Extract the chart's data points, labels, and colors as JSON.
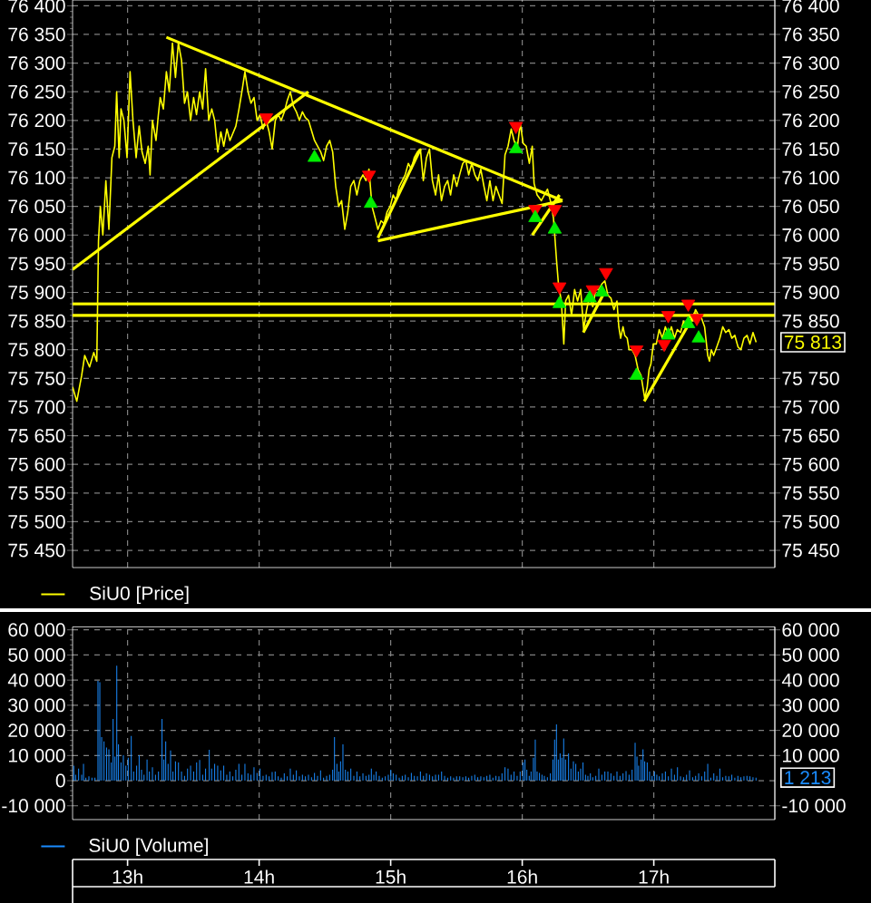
{
  "chart_data": [
    {
      "type": "line",
      "series": [
        {
          "name": "SiU0 [Price]",
          "color": "#ffff00",
          "x": [
            12.582,
            12.614,
            12.651,
            12.674,
            12.711,
            12.743,
            12.766,
            12.779,
            12.793,
            12.812,
            12.835,
            12.858,
            12.881,
            12.903,
            12.917,
            12.936,
            12.95,
            12.972,
            12.996,
            13.019,
            13.041,
            13.065,
            13.088,
            13.11,
            13.134,
            13.157,
            13.171,
            13.189,
            13.216,
            13.234,
            13.248,
            13.272,
            13.295,
            13.317,
            13.341,
            13.364,
            13.386,
            13.41,
            13.433,
            13.455,
            13.479,
            13.502,
            13.524,
            13.548,
            13.571,
            13.593,
            13.617,
            13.64,
            13.662,
            13.686,
            13.709,
            13.731,
            13.755,
            13.778,
            13.823,
            13.847,
            13.869,
            13.892,
            13.916,
            13.938,
            13.961,
            13.985,
            14.007,
            14.03,
            14.054,
            14.076,
            14.099,
            14.123,
            14.145,
            14.168,
            14.192,
            14.214,
            14.237,
            14.26,
            14.283,
            14.306,
            14.329,
            14.351,
            14.375,
            14.421,
            14.468,
            14.49,
            14.513,
            14.537,
            14.559,
            14.582,
            14.605,
            14.627,
            14.651,
            14.674,
            14.696,
            14.72,
            14.743,
            14.766,
            14.789,
            14.812,
            14.835,
            14.858,
            14.881,
            14.903,
            14.927,
            14.95,
            14.972,
            14.996,
            15.019,
            15.041,
            15.065,
            15.088,
            15.11,
            15.134,
            15.157,
            15.179,
            15.203,
            15.226,
            15.248,
            15.272,
            15.295,
            15.317,
            15.341,
            15.364,
            15.386,
            15.41,
            15.433,
            15.455,
            15.479,
            15.502,
            15.524,
            15.548,
            15.571,
            15.593,
            15.616,
            15.64,
            15.662,
            15.685,
            15.709,
            15.731,
            15.754,
            15.778,
            15.8,
            15.823,
            15.847,
            15.869,
            15.892,
            15.916,
            15.938,
            15.961,
            15.985,
            16.007,
            16.03,
            16.054,
            16.076,
            16.09,
            16.113,
            16.145,
            16.168,
            16.192,
            16.214,
            16.237,
            16.247,
            16.261,
            16.275,
            16.297,
            16.316,
            16.33,
            16.352,
            16.375,
            16.398,
            16.421,
            16.444,
            16.467,
            16.49,
            16.513,
            16.536,
            16.559,
            16.582,
            16.606,
            16.628,
            16.651,
            16.674,
            16.697,
            16.72,
            16.734,
            16.748,
            16.766,
            16.779,
            16.798,
            16.812,
            16.834,
            16.858,
            16.881,
            16.903,
            16.917,
            16.931,
            16.95,
            16.964,
            16.978,
            16.996,
            17.019,
            17.041,
            17.065,
            17.088,
            17.11,
            17.134,
            17.157,
            17.179,
            17.203,
            17.226,
            17.248,
            17.272,
            17.295,
            17.317,
            17.341,
            17.363,
            17.386,
            17.41,
            17.423,
            17.437,
            17.455,
            17.479,
            17.502,
            17.524,
            17.547,
            17.571,
            17.593,
            17.616,
            17.64,
            17.662,
            17.685,
            17.709,
            17.731,
            17.754,
            17.778
          ],
          "values": [
            75735,
            75710,
            75755,
            75790,
            75770,
            75795,
            75780,
            75990,
            76050,
            76000,
            76095,
            76010,
            76135,
            76155,
            76250,
            76135,
            76220,
            76200,
            76135,
            76285,
            76200,
            76135,
            76190,
            76145,
            76125,
            76155,
            76105,
            76200,
            76165,
            76210,
            76240,
            76220,
            76285,
            76250,
            76335,
            76275,
            76335,
            76305,
            76230,
            76250,
            76200,
            76240,
            76210,
            76250,
            76220,
            76290,
            76200,
            76220,
            76200,
            76145,
            76180,
            76155,
            76185,
            76165,
            76190,
            76220,
            76250,
            76285,
            76250,
            76230,
            76240,
            76200,
            76210,
            76185,
            76200,
            76180,
            76150,
            76200,
            76210,
            76200,
            76215,
            76235,
            76250,
            76225,
            76215,
            76200,
            76215,
            76205,
            76200,
            76165,
            76145,
            76130,
            76155,
            76165,
            76145,
            76085,
            76050,
            76060,
            76010,
            76040,
            76085,
            76095,
            76070,
            76095,
            76105,
            76095,
            76115,
            76050,
            76030,
            76010,
            76025,
            76020,
            76040,
            76050,
            76070,
            76060,
            76085,
            76095,
            76105,
            76125,
            76115,
            76135,
            76145,
            76150,
            76095,
            76135,
            76150,
            76095,
            76070,
            76105,
            76060,
            76085,
            76095,
            76070,
            76105,
            76085,
            76105,
            76125,
            76130,
            76105,
            76125,
            76105,
            76095,
            76115,
            76085,
            76060,
            76095,
            76060,
            76085,
            76070,
            76055,
            76140,
            76155,
            76185,
            76165,
            76150,
            76195,
            76160,
            76155,
            76125,
            76155,
            76090,
            76070,
            76060,
            76070,
            76080,
            76060,
            76030,
            76000,
            75955,
            75915,
            75885,
            75810,
            75885,
            75895,
            75860,
            75905,
            75885,
            75905,
            75835,
            75870,
            75895,
            75875,
            75905,
            75905,
            75915,
            75920,
            75895,
            75890,
            75870,
            75885,
            75840,
            75820,
            75840,
            75825,
            75820,
            75800,
            75800,
            75790,
            75765,
            75755,
            75735,
            75715,
            75735,
            75765,
            75775,
            75810,
            75810,
            75835,
            75820,
            75840,
            75825,
            75840,
            75820,
            75835,
            75830,
            75850,
            75840,
            75860,
            75850,
            75870,
            75860,
            75855,
            75840,
            75790,
            75780,
            75800,
            75790,
            75805,
            75820,
            75840,
            75830,
            75835,
            75820,
            75825,
            75805,
            75800,
            75820,
            75825,
            75810,
            75830,
            75813
          ]
        },
        {
          "color": "#ffff00",
          "x": [
            12.582,
            14.375
          ],
          "values": [
            75940,
            76250
          ]
        },
        {
          "color": "#ffff00",
          "x": [
            13.295,
            16.306
          ],
          "values": [
            76345,
            76060
          ]
        },
        {
          "color": "#ffff00",
          "x": [
            14.903,
            16.306
          ],
          "values": [
            75990,
            76060
          ]
        },
        {
          "color": "#ffff00",
          "x": [
            14.903,
            15.226
          ],
          "values": [
            75995,
            76150
          ]
        },
        {
          "color": "#ffff00",
          "x": [
            16.076,
            16.283
          ],
          "values": [
            76000,
            76070
          ]
        },
        {
          "color": "#ffff00",
          "x": [
            16.464,
            16.624
          ],
          "values": [
            75830,
            75900
          ]
        },
        {
          "color": "#ffff00",
          "x": [
            16.927,
            17.317
          ],
          "values": [
            75710,
            75865
          ]
        },
        {
          "type": "scatter",
          "color": "#ff0000",
          "marker": "triangle-down",
          "x": [
            14.054,
            14.835,
            15.952,
            16.099,
            16.247,
            16.283,
            16.536,
            16.637,
            16.868,
            17.079,
            17.11,
            17.262,
            17.327
          ],
          "values": [
            76205,
            76105,
            76190,
            76045,
            76045,
            75910,
            75905,
            75935,
            75800,
            75810,
            75860,
            75880,
            75855
          ]
        },
        {
          "type": "scatter",
          "color": "#00ee00",
          "marker": "triangle",
          "x": [
            14.421,
            14.849,
            15.952,
            16.099,
            16.247,
            16.283,
            16.513,
            16.605,
            16.868,
            17.11,
            17.262,
            17.341
          ],
          "values": [
            76135,
            76055,
            76150,
            76030,
            76010,
            75880,
            75890,
            75900,
            75755,
            75825,
            75845,
            75820
          ]
        }
      ],
      "xlim": [
        12.582,
        17.92
      ],
      "xticks": [
        {
          "value": 13,
          "label": null
        },
        {
          "value": 14,
          "label": null
        },
        {
          "value": 15,
          "label": null
        },
        {
          "value": 16,
          "label": null
        },
        {
          "value": 17,
          "label": null
        }
      ],
      "ylim": [
        75420,
        76410
      ],
      "yticks": [
        {
          "value": 75450,
          "label": "75 450"
        },
        {
          "value": 75500,
          "label": "75 500"
        },
        {
          "value": 75550,
          "label": "75 550"
        },
        {
          "value": 75600,
          "label": "75 600"
        },
        {
          "value": 75650,
          "label": "75 650"
        },
        {
          "value": 75700,
          "label": "75 700"
        },
        {
          "value": 75750,
          "label": "75 750"
        },
        {
          "value": 75800,
          "label": "75 800"
        },
        {
          "value": 75850,
          "label": "75 850"
        },
        {
          "value": 75900,
          "label": "75 900"
        },
        {
          "value": 75950,
          "label": "75 950"
        },
        {
          "value": 76000,
          "label": "76 000"
        },
        {
          "value": 76050,
          "label": "76 050"
        },
        {
          "value": 76100,
          "label": "76 100"
        },
        {
          "value": 76150,
          "label": "76 150"
        },
        {
          "value": 76200,
          "label": "76 200"
        },
        {
          "value": 76250,
          "label": "76 250"
        },
        {
          "value": 76300,
          "label": "76 300"
        },
        {
          "value": 76350,
          "label": "76 350"
        },
        {
          "value": 76400,
          "label": "76 400"
        }
      ],
      "y2lim": [
        75420,
        76410
      ],
      "y2ticks": [
        {
          "value": 75450,
          "label": "75 450"
        },
        {
          "value": 75500,
          "label": "75 500"
        },
        {
          "value": 75550,
          "label": "75 550"
        },
        {
          "value": 75600,
          "label": "75 600"
        },
        {
          "value": 75650,
          "label": "75 650"
        },
        {
          "value": 75700,
          "label": "75 700"
        },
        {
          "value": 75750,
          "label": "75 750"
        },
        {
          "value": 75850,
          "label": "75 850"
        },
        {
          "value": 75900,
          "label": "75 900"
        },
        {
          "value": 75950,
          "label": "75 950"
        },
        {
          "value": 76000,
          "label": "76 000"
        },
        {
          "value": 76050,
          "label": "76 050"
        },
        {
          "value": 76100,
          "label": "76 100"
        },
        {
          "value": 76150,
          "label": "76 150"
        },
        {
          "value": 76200,
          "label": "76 200"
        },
        {
          "value": 76250,
          "label": "76 250"
        },
        {
          "value": 76300,
          "label": "76 300"
        },
        {
          "value": 76350,
          "label": "76 350"
        },
        {
          "value": 76400,
          "label": "76 400"
        }
      ],
      "tick_labels": "y",
      "grid": true,
      "legend": "bottom left",
      "ref_lines": [
        {
          "axis": "y",
          "value": 75880,
          "color": "#ffff00"
        },
        {
          "axis": "y",
          "value": 75860,
          "color": "#ffff00"
        }
      ],
      "annotations": [
        "75 813"
      ]
    },
    {
      "type": "bar",
      "series": [
        {
          "name": "SiU0 [Volume]",
          "color": "#1a8cff",
          "x": [
            12.591,
            12.605,
            12.628,
            12.651,
            12.665,
            12.683,
            12.706,
            12.729,
            12.752,
            12.775,
            12.789,
            12.803,
            12.821,
            12.84,
            12.858,
            12.876,
            12.89,
            12.904,
            12.918,
            12.931,
            12.95,
            12.968,
            12.987,
            13.005,
            13.028,
            13.046,
            13.069,
            13.088,
            13.106,
            13.125,
            13.148,
            13.166,
            13.189,
            13.212,
            13.235,
            13.262,
            13.276,
            13.29,
            13.308,
            13.327,
            13.345,
            13.364,
            13.387,
            13.41,
            13.433,
            13.456,
            13.479,
            13.502,
            13.525,
            13.548,
            13.571,
            13.593,
            13.621,
            13.639,
            13.662,
            13.685,
            13.708,
            13.731,
            13.754,
            13.777,
            13.8,
            13.823,
            13.846,
            13.869,
            13.892,
            13.915,
            13.938,
            13.961,
            13.984,
            14.007,
            14.03,
            14.053,
            14.076,
            14.099,
            14.122,
            14.145,
            14.168,
            14.191,
            14.214,
            14.237,
            14.26,
            14.283,
            14.306,
            14.329,
            14.352,
            14.375,
            14.398,
            14.421,
            14.444,
            14.467,
            14.49,
            14.513,
            14.536,
            14.559,
            14.573,
            14.591,
            14.605,
            14.619,
            14.637,
            14.656,
            14.674,
            14.697,
            14.72,
            14.743,
            14.766,
            14.789,
            14.812,
            14.835,
            14.853,
            14.872,
            14.89,
            14.913,
            14.936,
            14.959,
            14.982,
            15.001,
            15.019,
            15.042,
            15.065,
            15.088,
            15.111,
            15.134,
            15.157,
            15.18,
            15.203,
            15.226,
            15.249,
            15.272,
            15.295,
            15.318,
            15.341,
            15.364,
            15.387,
            15.41,
            15.433,
            15.456,
            15.478,
            15.501,
            15.525,
            15.548,
            15.571,
            15.593,
            15.616,
            15.639,
            15.662,
            15.685,
            15.708,
            15.731,
            15.754,
            15.777,
            15.8,
            15.823,
            15.846,
            15.869,
            15.892,
            15.915,
            15.938,
            15.961,
            15.984,
            16.007,
            16.021,
            16.035,
            16.053,
            16.067,
            16.085,
            16.099,
            16.113,
            16.131,
            16.15,
            16.168,
            16.191,
            16.214,
            16.233,
            16.246,
            16.26,
            16.274,
            16.288,
            16.301,
            16.315,
            16.329,
            16.352,
            16.37,
            16.389,
            16.407,
            16.426,
            16.444,
            16.462,
            16.481,
            16.499,
            16.518,
            16.536,
            16.559,
            16.582,
            16.605,
            16.628,
            16.651,
            16.674,
            16.697,
            16.72,
            16.743,
            16.766,
            16.789,
            16.812,
            16.835,
            16.858,
            16.872,
            16.885,
            16.904,
            16.918,
            16.931,
            16.95,
            16.968,
            16.987,
            17.005,
            17.023,
            17.042,
            17.065,
            17.088,
            17.111,
            17.134,
            17.157,
            17.18,
            17.203,
            17.226,
            17.249,
            17.272,
            17.295,
            17.318,
            17.341,
            17.364,
            17.387,
            17.41,
            17.433,
            17.456,
            17.479,
            17.502,
            17.524,
            17.547,
            17.57,
            17.593,
            17.616,
            17.639,
            17.662,
            17.685,
            17.708,
            17.731,
            17.754,
            17.777
          ],
          "values": [
            6000,
            2400,
            4800,
            2400,
            6700,
            1200,
            1700,
            1200,
            1200,
            39700,
            39200,
            17300,
            15600,
            13200,
            12500,
            7200,
            24500,
            9600,
            45700,
            14400,
            7200,
            10100,
            6000,
            9100,
            17800,
            3600,
            6000,
            10100,
            4300,
            2400,
            8400,
            3600,
            5300,
            2400,
            3600,
            24500,
            8400,
            15600,
            6700,
            12000,
            3600,
            7700,
            7200,
            3600,
            1900,
            4800,
            6000,
            3600,
            7200,
            8200,
            2400,
            4800,
            12300,
            4800,
            6700,
            6000,
            4100,
            6000,
            2400,
            3600,
            1700,
            4300,
            6700,
            2400,
            6700,
            2900,
            2400,
            5300,
            3100,
            4800,
            1900,
            2400,
            1700,
            3400,
            3600,
            1700,
            1200,
            2900,
            1700,
            4800,
            2400,
            4100,
            1700,
            2400,
            1700,
            2400,
            1400,
            3100,
            1900,
            4100,
            1200,
            1900,
            2400,
            4300,
            17300,
            6700,
            3600,
            7700,
            14400,
            4300,
            3600,
            4800,
            1900,
            3600,
            1700,
            2900,
            1900,
            2400,
            4800,
            2400,
            3600,
            1900,
            1200,
            1700,
            2400,
            4300,
            2900,
            2400,
            1200,
            1900,
            2400,
            1400,
            3100,
            1900,
            1700,
            3600,
            1900,
            2900,
            2400,
            1700,
            2400,
            2400,
            3600,
            1900,
            1200,
            1700,
            1200,
            1700,
            1700,
            1400,
            1700,
            1200,
            1900,
            2400,
            1400,
            1700,
            1400,
            1900,
            2400,
            1200,
            1900,
            1700,
            2900,
            5300,
            4800,
            2400,
            3600,
            1900,
            3600,
            7200,
            8400,
            4300,
            1900,
            3600,
            9100,
            16300,
            3600,
            3100,
            2400,
            1900,
            1400,
            2900,
            8400,
            16300,
            22400,
            8400,
            10800,
            9100,
            16800,
            8400,
            10800,
            4800,
            7700,
            6700,
            3600,
            4800,
            7200,
            2400,
            1900,
            2900,
            1400,
            1900,
            4800,
            2400,
            3600,
            3600,
            2900,
            1900,
            3600,
            1900,
            2900,
            3800,
            2400,
            4300,
            15100,
            9600,
            6000,
            8400,
            12500,
            7700,
            7200,
            3600,
            1900,
            3600,
            2400,
            1700,
            2900,
            3600,
            1700,
            4800,
            2400,
            5300,
            1700,
            1400,
            2400,
            4100,
            1400,
            1900,
            2900,
            1700,
            3600,
            6700,
            1200,
            2900,
            1900,
            4800,
            1400,
            1900,
            1700,
            2400,
            1200,
            1900,
            1400,
            1700,
            1900,
            1700,
            1400,
            1213
          ]
        }
      ],
      "xlim": [
        12.582,
        17.92
      ],
      "xticks": [
        {
          "value": 13,
          "label": "13h"
        },
        {
          "value": 14,
          "label": "14h"
        },
        {
          "value": 15,
          "label": "15h"
        },
        {
          "value": 16,
          "label": "16h"
        },
        {
          "value": 17,
          "label": "17h"
        }
      ],
      "ylim": [
        -15500,
        61200
      ],
      "yticks": [
        {
          "value": -10000,
          "label": "-10 000"
        },
        0,
        {
          "value": 10000,
          "label": "10 000"
        },
        {
          "value": 20000,
          "label": "20 000"
        },
        {
          "value": 30000,
          "label": "30 000"
        },
        {
          "value": 40000,
          "label": "40 000"
        },
        {
          "value": 50000,
          "label": "50 000"
        },
        {
          "value": 60000,
          "label": "60 000"
        }
      ],
      "y2lim": [
        -15500,
        61200
      ],
      "y2ticks": [
        {
          "value": -10000,
          "label": "-10 000"
        },
        {
          "value": 10000,
          "label": "10 000"
        },
        {
          "value": 20000,
          "label": "20 000"
        },
        {
          "value": 30000,
          "label": "30 000"
        },
        {
          "value": 40000,
          "label": "40 000"
        },
        {
          "value": 50000,
          "label": "50 000"
        },
        {
          "value": 60000,
          "label": "60 000"
        }
      ],
      "grid": true,
      "legend": "bottom left",
      "annotations": [
        "1 213"
      ]
    }
  ]
}
